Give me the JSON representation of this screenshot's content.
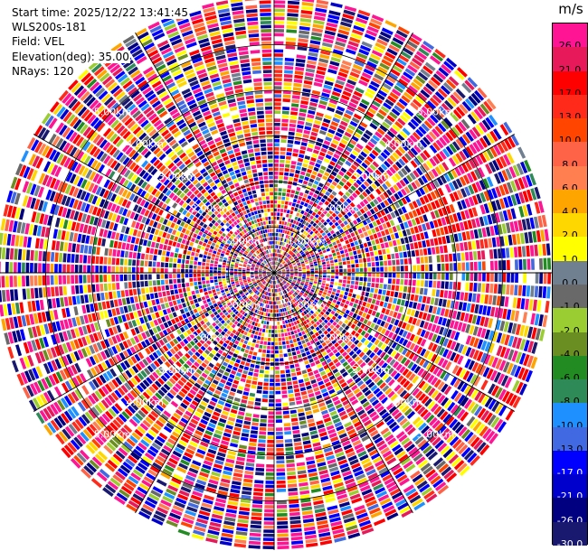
{
  "header": {
    "start_time": "Start time: 2025/12/22 13:41:45",
    "site": "WLS200s-181",
    "field": "Field: VEL",
    "elevation": "Elevation(deg): 35.00",
    "nrays": "NRays: 120"
  },
  "colorbar": {
    "unit": "m/s",
    "levels": [
      "26.0",
      "21.0",
      "17.0",
      "13.0",
      "10.0",
      "8.0",
      "6.0",
      "4.0",
      "2.0",
      "1.0",
      "0.0",
      "-1.0",
      "-2.0",
      "-4.0",
      "-6.0",
      "-8.0",
      "-10.0",
      "-13.0",
      "-17.0",
      "-21.0",
      "-26.0",
      "-30.0"
    ],
    "colors": [
      "#ff1493",
      "#e8195a",
      "#ff0000",
      "#ff2a1a",
      "#ff4500",
      "#ff6347",
      "#ff7f50",
      "#ffa500",
      "#ffd700",
      "#ffff00",
      "#708090",
      "#696969",
      "#9acd32",
      "#6b8e23",
      "#228b22",
      "#2e8b57",
      "#1e90ff",
      "#4169e1",
      "#0000ff",
      "#0000cd",
      "#000080",
      "#191970"
    ]
  },
  "chart_data": {
    "type": "heatmap",
    "subtype": "ppi-polar",
    "field": "VEL",
    "nrays": 120,
    "elevation_deg": 35.0,
    "range_rings_km": [
      1.0,
      2.0,
      3.0,
      4.0,
      5.0
    ],
    "ring_labels": [
      "1.00km",
      "2.00km",
      "3.00km",
      "4.00km",
      "5.00km"
    ],
    "max_range_km": 5.4,
    "colorbar_range": [
      -30.0,
      26.0
    ],
    "notes_visible": "noisy velocity field; coherent red/orange band near azimuth 70-75 deg, 3.2-4.2 km"
  }
}
